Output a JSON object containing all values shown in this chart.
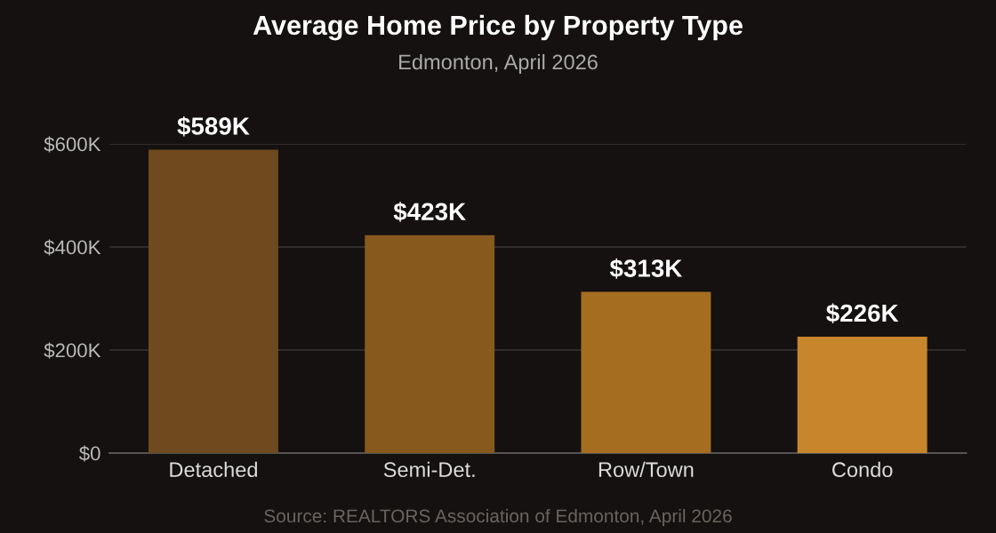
{
  "chart_data": {
    "type": "bar",
    "title": "Average Home Price by Property Type",
    "subtitle": "Edmonton, April 2026",
    "categories": [
      "Detached",
      "Semi-Det.",
      "Row/Town",
      "Condo"
    ],
    "values": [
      589000,
      423000,
      313000,
      226000
    ],
    "colors": [
      "#6f4a1e",
      "#87591d",
      "#a56d20",
      "#c8862c"
    ],
    "value_labels": [
      "$589K",
      "$423K",
      "$313K",
      "$226K"
    ],
    "ylim": [
      0,
      600000
    ],
    "yticks": [
      {
        "value": 0,
        "label": "$0"
      },
      {
        "value": 200000,
        "label": "$200K"
      },
      {
        "value": 400000,
        "label": "$400K"
      },
      {
        "value": 600000,
        "label": "$600K"
      }
    ],
    "grid": "y",
    "legend": false,
    "annotations": [
      "Source: REALTORS Association of Edmonton, April 2026"
    ]
  }
}
